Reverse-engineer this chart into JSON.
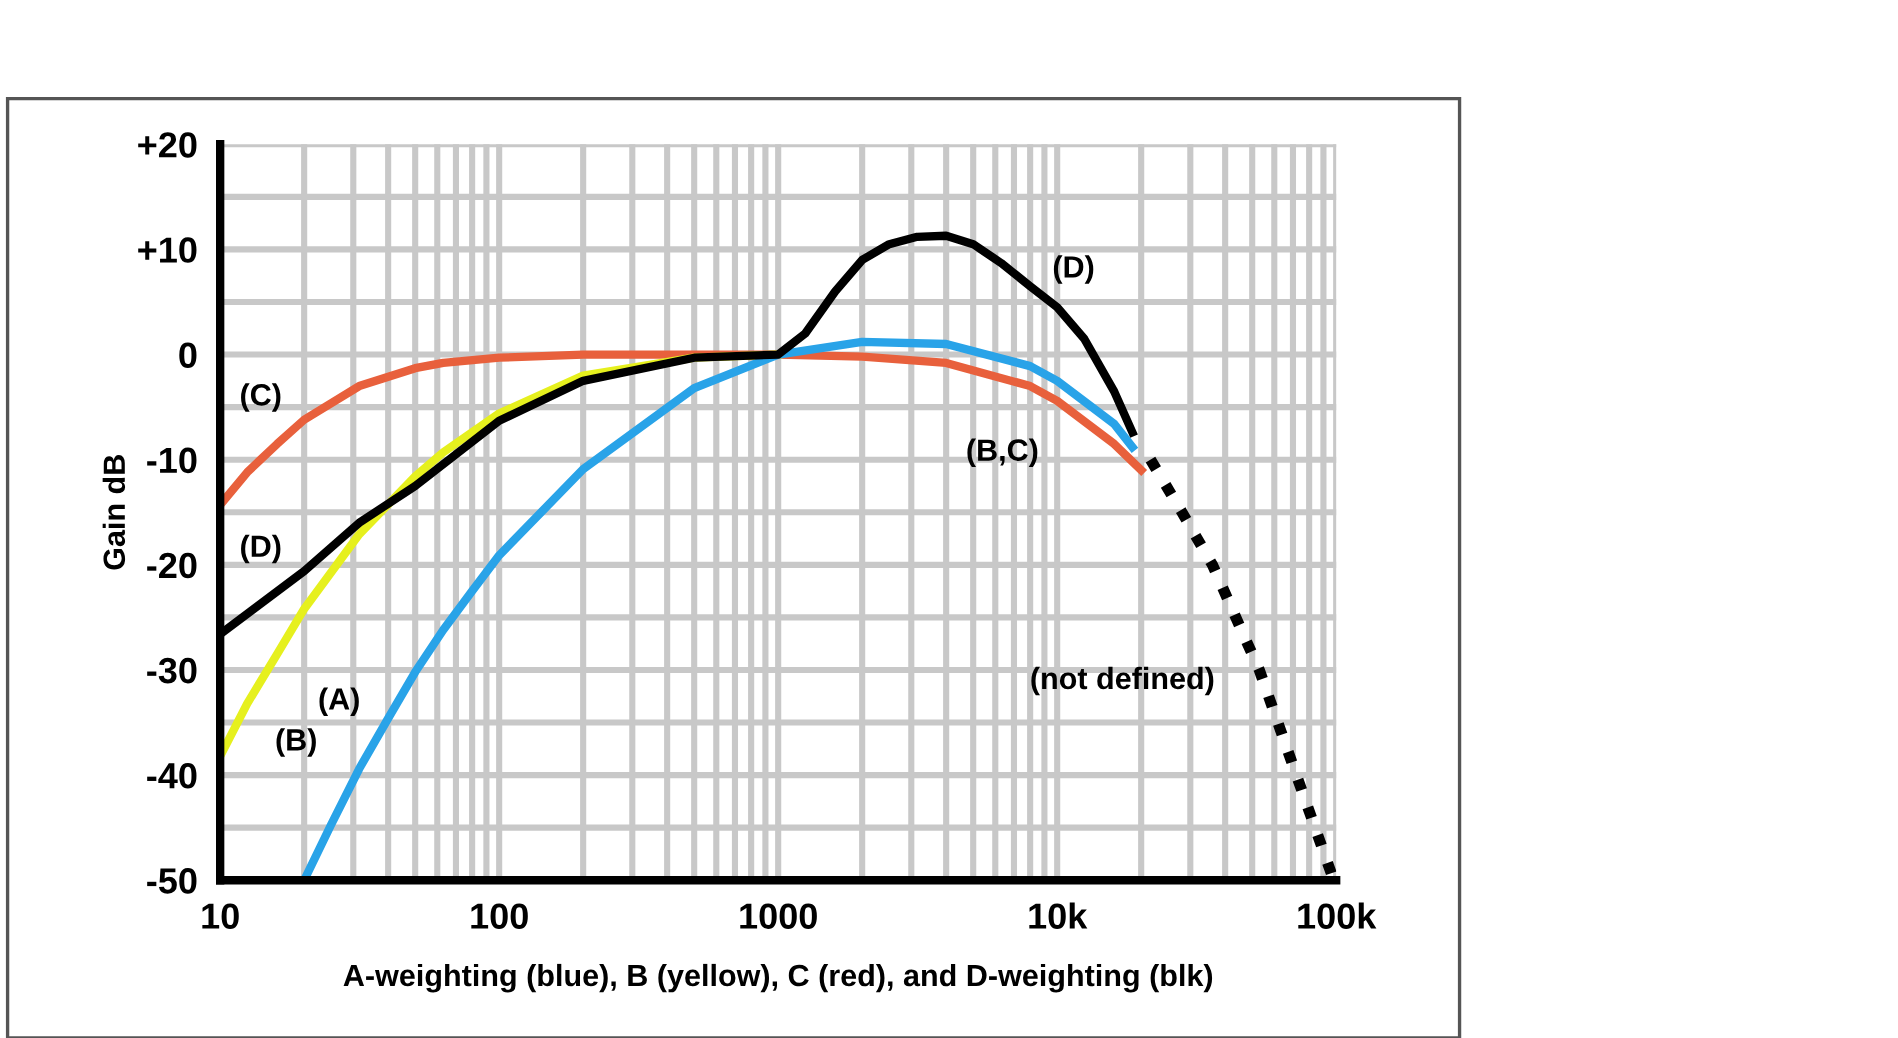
{
  "chart_data": {
    "type": "line",
    "xlabel": "A-weighting (blue), B (yellow), C (red), and D-weighting (blk)",
    "ylabel": "Gain dB",
    "log": "x",
    "grid": true,
    "legend": false,
    "marker": "none",
    "line_style": "solid",
    "xlim": [
      10,
      100000
    ],
    "ylim": [
      -50,
      20
    ],
    "xticks": [
      10,
      {
        "value": 20,
        "label": null
      },
      {
        "value": 30,
        "label": null
      },
      {
        "value": 40,
        "label": null
      },
      {
        "value": 50,
        "label": null
      },
      {
        "value": 60,
        "label": null
      },
      {
        "value": 70,
        "label": null
      },
      {
        "value": 80,
        "label": null
      },
      {
        "value": 90,
        "label": null
      },
      100,
      {
        "value": 200,
        "label": null
      },
      {
        "value": 300,
        "label": null
      },
      {
        "value": 400,
        "label": null
      },
      {
        "value": 500,
        "label": null
      },
      {
        "value": 600,
        "label": null
      },
      {
        "value": 700,
        "label": null
      },
      {
        "value": 800,
        "label": null
      },
      {
        "value": 900,
        "label": null
      },
      1000,
      {
        "value": 2000,
        "label": null
      },
      {
        "value": 3000,
        "label": null
      },
      {
        "value": 4000,
        "label": null
      },
      {
        "value": 5000,
        "label": null
      },
      {
        "value": 6000,
        "label": null
      },
      {
        "value": 7000,
        "label": null
      },
      {
        "value": 8000,
        "label": null
      },
      {
        "value": 9000,
        "label": null
      },
      {
        "value": 10000,
        "label": "10k"
      },
      {
        "value": 20000,
        "label": null
      },
      {
        "value": 30000,
        "label": null
      },
      {
        "value": 40000,
        "label": null
      },
      {
        "value": 50000,
        "label": null
      },
      {
        "value": 60000,
        "label": null
      },
      {
        "value": 70000,
        "label": null
      },
      {
        "value": 80000,
        "label": null
      },
      {
        "value": 90000,
        "label": null
      },
      {
        "value": 100000,
        "label": "100k"
      }
    ],
    "yticks": [
      -50,
      {
        "value": -45,
        "label": null
      },
      -40,
      {
        "value": -35,
        "label": null
      },
      -30,
      {
        "value": -25,
        "label": null
      },
      -20,
      {
        "value": -15,
        "label": null
      },
      -10,
      {
        "value": -5,
        "label": null
      },
      0,
      {
        "value": 5,
        "label": null
      },
      {
        "value": 10,
        "label": "+10"
      },
      {
        "value": 15,
        "label": null
      },
      {
        "value": 20,
        "label": "+20"
      }
    ],
    "series": [
      {
        "color": "#e8603c",
        "x": [
          10,
          12.5,
          16,
          20,
          31.5,
          50,
          63,
          100,
          200,
          1000,
          2000,
          4000,
          8000,
          10000,
          16000,
          20000
        ],
        "values": [
          -14.3,
          -11.2,
          -8.5,
          -6.2,
          -3.0,
          -1.3,
          -0.8,
          -0.3,
          0,
          0,
          -0.2,
          -0.8,
          -3.0,
          -4.4,
          -8.5,
          -11.0
        ]
      },
      {
        "color": "#e6f01e",
        "x": [
          10,
          12.5,
          16,
          20,
          31.5,
          50,
          63,
          100,
          200,
          500,
          1000
        ],
        "values": [
          -38.2,
          -33.2,
          -28.5,
          -24.2,
          -17.1,
          -11.6,
          -9.3,
          -5.6,
          -2.0,
          -0.3,
          0
        ]
      },
      {
        "color": "#29a3e8",
        "x": [
          20,
          25,
          31.5,
          40,
          50,
          63,
          80,
          100,
          200,
          500,
          1000,
          2000,
          4000,
          8000,
          10000,
          16000,
          18600
        ],
        "values": [
          -50,
          -44.7,
          -39.4,
          -34.6,
          -30.2,
          -26.2,
          -22.5,
          -19.1,
          -10.9,
          -3.2,
          0,
          1.2,
          1.0,
          -1.1,
          -2.5,
          -6.6,
          -8.8
        ]
      },
      {
        "color": "#000000",
        "x": [
          10,
          20,
          31.5,
          50,
          100,
          200,
          500,
          1000,
          1250,
          1600,
          2000,
          2500,
          3150,
          4000,
          5000,
          6300,
          8000,
          10000,
          12500,
          16000,
          18600
        ],
        "values": [
          -26.6,
          -20.6,
          -16.0,
          -12.5,
          -6.3,
          -2.5,
          -0.3,
          0,
          2,
          6,
          9,
          10.5,
          11.2,
          11.3,
          10.5,
          8.7,
          6.5,
          4.5,
          1.5,
          -3.5,
          -7.4
        ]
      },
      {
        "color": "#000000",
        "line_style": "dotted",
        "x": [
          21600,
          28000,
          36000,
          53000,
          72000,
          98000
        ],
        "values": [
          -10,
          -15,
          -20,
          -30,
          -40,
          -50
        ]
      }
    ],
    "annotations": [
      {
        "text": "(C)",
        "x": 20,
        "y": -6.2
      },
      {
        "text": "(D)",
        "x": 20,
        "y": -20.6
      },
      {
        "text": "(B)",
        "x": 12.5,
        "y": -33.2
      },
      {
        "text": "(A)",
        "x": 40,
        "y": -34.6
      },
      {
        "text": "(D)",
        "x": 8000,
        "y": 6.5
      },
      {
        "text": "(B,C)",
        "x": 8000,
        "y": -3.0
      },
      {
        "text": "(not defined)",
        "x": 53000,
        "y": -30
      }
    ]
  }
}
